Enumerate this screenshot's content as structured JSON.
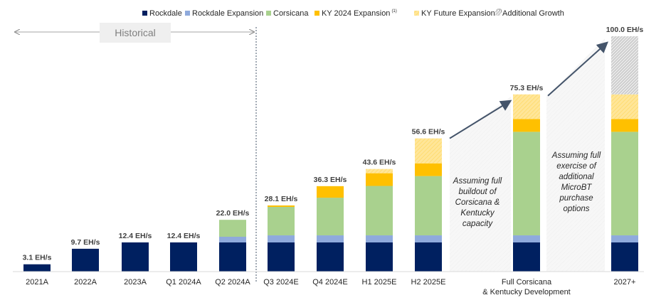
{
  "chart_data": {
    "type": "bar",
    "stacked": true,
    "unit": "EH/s",
    "legend_position": "top",
    "grid": false,
    "ylim": [
      0,
      100
    ],
    "categories": [
      "2021A",
      "2022A",
      "2023A",
      "Q1 2024A",
      "Q2 2024A",
      "Q3 2024E",
      "Q4 2024E",
      "H1 2025E",
      "H2 2025E",
      "Full Corsicana & Kentucky Development",
      "2027+"
    ],
    "category_lines": [
      [
        "2021A"
      ],
      [
        "2022A"
      ],
      [
        "2023A"
      ],
      [
        "Q1 2024A"
      ],
      [
        "Q2 2024A"
      ],
      [
        "Q3 2024E"
      ],
      [
        "Q4 2024E"
      ],
      [
        "H1 2025E"
      ],
      [
        "H2 2025E"
      ],
      [
        "Full Corsicana",
        "& Kentucky Development"
      ],
      [
        "2027+"
      ]
    ],
    "series": [
      {
        "name": "Rockdale",
        "color": "#002060",
        "pattern": "solid",
        "values": [
          3.1,
          9.7,
          12.4,
          12.4,
          12.4,
          12.4,
          12.4,
          12.4,
          12.4,
          12.4,
          12.4
        ]
      },
      {
        "name": "Rockdale Expansion",
        "color": "#8faadc",
        "pattern": "solid",
        "values": [
          0,
          0,
          0,
          0,
          2.4,
          3.0,
          3.0,
          3.0,
          3.0,
          3.0,
          3.0
        ]
      },
      {
        "name": "Corsicana",
        "color": "#a9d18e",
        "pattern": "solid",
        "values": [
          0,
          0,
          0,
          0,
          7.2,
          12.1,
          16.0,
          21.0,
          25.2,
          44.0,
          44.0
        ]
      },
      {
        "name": "KY 2024 Expansion",
        "superscript": "(1)",
        "color": "#ffc000",
        "pattern": "solid",
        "values": [
          0,
          0,
          0,
          0,
          0,
          0.6,
          4.9,
          5.4,
          5.4,
          5.4,
          5.4
        ]
      },
      {
        "name": "KY Future Expansion",
        "superscript": "(2)",
        "color": "#ffe699",
        "pattern": "hatch",
        "values": [
          0,
          0,
          0,
          0,
          0,
          0,
          0,
          1.8,
          10.6,
          10.5,
          10.5
        ]
      },
      {
        "name": "Additional Growth",
        "color": "#bfbfbf",
        "pattern": "hatch",
        "values": [
          0,
          0,
          0,
          0,
          0,
          0,
          0,
          0,
          0,
          0,
          24.7
        ]
      }
    ],
    "totals": [
      "3.1 EH/s",
      "9.7 EH/s",
      "12.4 EH/s",
      "12.4 EH/s",
      "22.0 EH/s",
      "28.1 EH/s",
      "36.3 EH/s",
      "43.6 EH/s",
      "56.6 EH/s",
      "75.3 EH/s",
      "100.0 EH/s"
    ],
    "annotations": {
      "historical": "Historical",
      "note1": [
        "Assuming full",
        "buildout of",
        "Corsicana &",
        "Kentucky",
        "capacity"
      ],
      "note2": [
        "Assuming full",
        "exercise of",
        "additional",
        "MicroBT",
        "purchase",
        "options"
      ]
    }
  }
}
